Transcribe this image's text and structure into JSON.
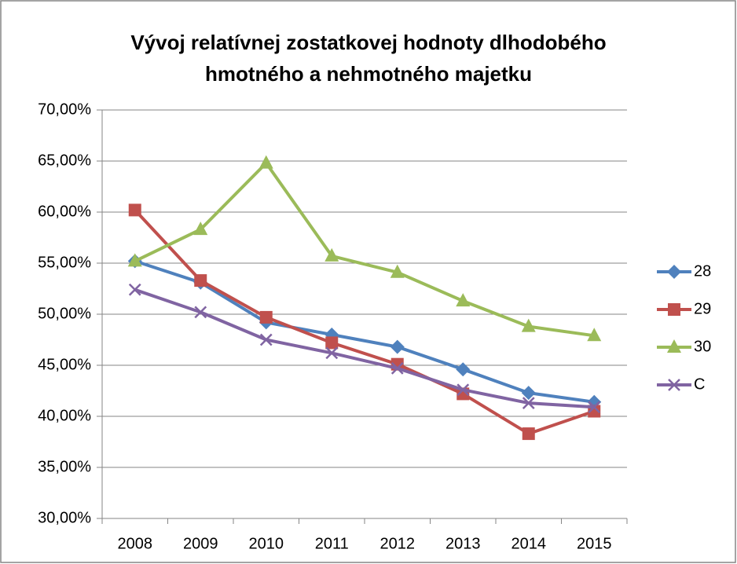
{
  "chart_data": {
    "type": "line",
    "title": "Vývoj relatívnej zostatkovej hodnoty dlhodobého hmotného a nehmotného majetku",
    "categories": [
      "2008",
      "2009",
      "2010",
      "2011",
      "2012",
      "2013",
      "2014",
      "2015"
    ],
    "series": [
      {
        "name": "28",
        "color": "#4f81bd",
        "marker": "diamond",
        "values": [
          55.2,
          53.1,
          49.2,
          48.0,
          46.8,
          44.6,
          42.3,
          41.4
        ]
      },
      {
        "name": "29",
        "color": "#c0504d",
        "marker": "square",
        "values": [
          60.2,
          53.3,
          49.7,
          47.2,
          45.1,
          42.2,
          38.3,
          40.5
        ]
      },
      {
        "name": "30",
        "color": "#9bbb59",
        "marker": "triangle",
        "values": [
          55.2,
          58.3,
          64.8,
          55.7,
          54.1,
          51.3,
          48.8,
          47.9
        ]
      },
      {
        "name": "C",
        "color": "#8064a2",
        "marker": "x",
        "values": [
          52.4,
          50.2,
          47.5,
          46.2,
          44.7,
          42.6,
          41.3,
          40.9
        ]
      }
    ],
    "ylim": [
      30,
      70
    ],
    "yticks": [
      {
        "value": 30,
        "label": "30,00%"
      },
      {
        "value": 35,
        "label": "35,00%"
      },
      {
        "value": 40,
        "label": "40,00%"
      },
      {
        "value": 45,
        "label": "45,00%"
      },
      {
        "value": 50,
        "label": "50,00%"
      },
      {
        "value": 55,
        "label": "55,00%"
      },
      {
        "value": 60,
        "label": "60,00%"
      },
      {
        "value": 65,
        "label": "65,00%"
      },
      {
        "value": 70,
        "label": "70,00%"
      }
    ],
    "grid": true,
    "legend": "right"
  }
}
